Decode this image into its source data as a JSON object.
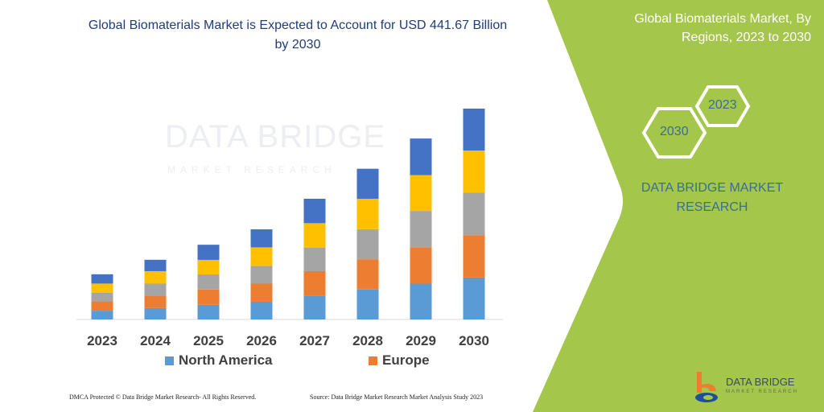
{
  "title": "Global Biomaterials Market is Expected to Account for USD 441.67 Billion by 2030",
  "side_panel": {
    "title": "Global Biomaterials Market, By Regions, 2023 to 2030",
    "hex_years": [
      "2023",
      "2030"
    ],
    "brand": "DATA BRIDGE MARKET RESEARCH",
    "logo_text": "DATA BRIDGE",
    "logo_subtext": "MARKET RESEARCH",
    "green": "#a4c64a"
  },
  "watermark": {
    "line1": "DATA BRIDGE",
    "line2": "MARKET RESEARCH"
  },
  "footer": {
    "left": "DMCA Protected © Data Bridge Market Research- All Rights Reserved.",
    "right": "Source: Data Bridge Market Research Market Analysis Study 2023"
  },
  "chart_data": {
    "type": "bar",
    "stacked": true,
    "categories": [
      "2023",
      "2024",
      "2025",
      "2026",
      "2027",
      "2028",
      "2029",
      "2030"
    ],
    "series": [
      {
        "name": "North America",
        "color": "#5b9bd5",
        "values": [
          11.0,
          14.3,
          18.3,
          22.3,
          30.0,
          37.7,
          45.0,
          52.7
        ]
      },
      {
        "name": "Europe",
        "color": "#ed7d31",
        "values": [
          11.7,
          15.7,
          19.3,
          22.7,
          30.7,
          38.0,
          45.7,
          53.3
        ]
      },
      {
        "color": "#a5a5a5",
        "values": [
          10.7,
          15.0,
          19.0,
          22.3,
          29.3,
          37.7,
          45.7,
          53.3
        ]
      },
      {
        "color": "#ffc000",
        "values": [
          11.7,
          15.7,
          18.3,
          23.3,
          31.0,
          38.3,
          45.0,
          53.0
        ]
      },
      {
        "color": "#4472c4",
        "values": [
          11.7,
          14.3,
          19.0,
          22.7,
          30.7,
          37.7,
          46.0,
          52.7
        ]
      }
    ],
    "ylim": [
      0,
      270
    ],
    "y_axis_shown": false,
    "grid": false,
    "legend": "bottom"
  }
}
